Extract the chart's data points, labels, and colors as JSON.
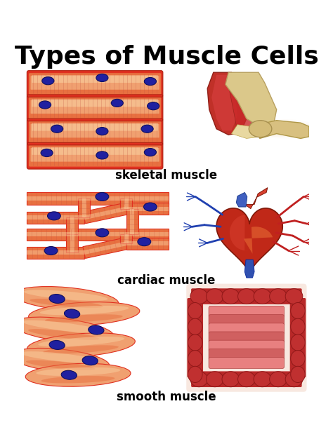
{
  "title": "Types of Muscle Cells",
  "title_fontsize": 26,
  "title_fontweight": "black",
  "bg_color": "#ffffff",
  "labels": [
    "skeletal muscle",
    "cardiac muscle",
    "smooth muscle"
  ],
  "label_fontsize": 12,
  "label_fontweight": "bold",
  "muscle_red": "#E03020",
  "muscle_orange": "#E87040",
  "muscle_light": "#F0A070",
  "muscle_highlight": "#F8C898",
  "muscle_dark": "#B02010",
  "nucleus_color": "#2020A0",
  "nucleus_dark": "#101060",
  "stripe_color": "#C05040"
}
